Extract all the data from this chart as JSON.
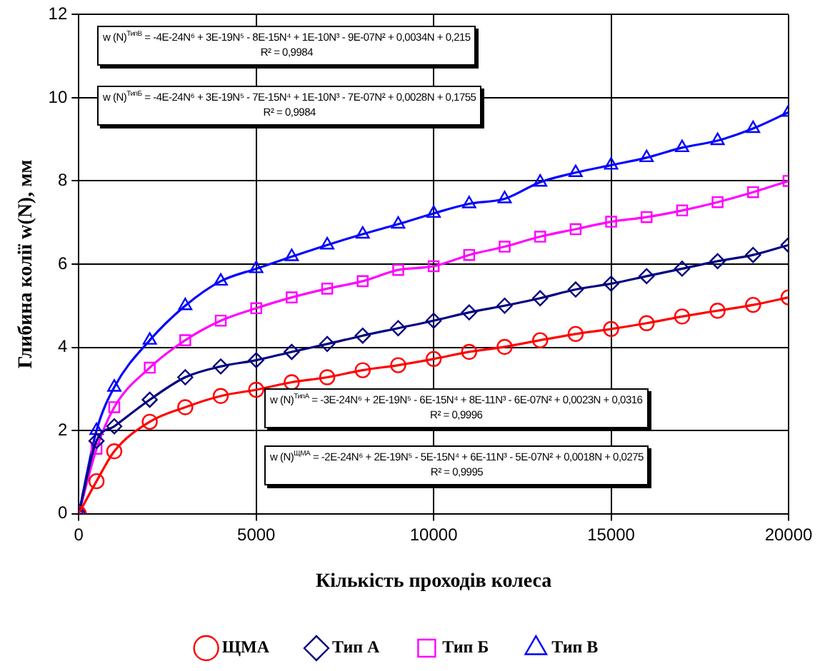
{
  "chart_data": {
    "type": "line",
    "xlabel": "Кількість проходів колеса",
    "ylabel": "Глибина колії w(N), мм",
    "x": [
      0,
      500,
      1000,
      2000,
      3000,
      4000,
      5000,
      6000,
      7000,
      8000,
      9000,
      10000,
      11000,
      12000,
      13000,
      14000,
      15000,
      16000,
      17000,
      18000,
      19000,
      20000
    ],
    "series": [
      {
        "name": "ЩМА",
        "color": "#ff0000",
        "marker": "circle",
        "values": [
          0,
          0.78,
          1.5,
          2.21,
          2.56,
          2.83,
          2.98,
          3.16,
          3.28,
          3.45,
          3.57,
          3.72,
          3.89,
          4.01,
          4.17,
          4.32,
          4.44,
          4.58,
          4.74,
          4.88,
          5.02,
          5.2
        ]
      },
      {
        "name": "Тип А",
        "color": "#000080",
        "marker": "diamond",
        "values": [
          0,
          1.75,
          2.1,
          2.74,
          3.28,
          3.54,
          3.69,
          3.89,
          4.08,
          4.28,
          4.46,
          4.64,
          4.84,
          5.0,
          5.18,
          5.39,
          5.53,
          5.71,
          5.89,
          6.07,
          6.22,
          6.46
        ]
      },
      {
        "name": "Тип Б",
        "color": "#ff00ff",
        "marker": "square",
        "values": [
          0,
          1.56,
          2.56,
          3.51,
          4.17,
          4.64,
          4.94,
          5.2,
          5.41,
          5.59,
          5.86,
          5.95,
          6.22,
          6.42,
          6.66,
          6.84,
          7.02,
          7.13,
          7.29,
          7.49,
          7.73,
          8.0
        ]
      },
      {
        "name": "Тип В",
        "color": "#0000ff",
        "marker": "triangle",
        "values": [
          0,
          2.0,
          3.04,
          4.17,
          5.0,
          5.59,
          5.89,
          6.18,
          6.46,
          6.72,
          6.96,
          7.22,
          7.45,
          7.57,
          7.97,
          8.2,
          8.38,
          8.56,
          8.8,
          8.97,
          9.26,
          9.65
        ]
      }
    ],
    "xlim": [
      0,
      20000
    ],
    "xticks": [
      0,
      5000,
      10000,
      15000,
      20000
    ],
    "ylim": [
      0,
      12
    ],
    "yticks": [
      0,
      2,
      4,
      6,
      8,
      10,
      12
    ],
    "grid": true,
    "legend": "bottom",
    "line_style": "solid",
    "annotations": [
      "w (N)$^{ТипВ}$ = -4E-24N⁶ + 3E-19N⁵ - 8E-15N⁴ + 1E-10N³ - 9E-07N² + 0,0034N + 0,215\nR² = 0,9984",
      "w (N)$^{ТипБ}$ = -4E-24N⁶ + 3E-19N⁵ - 7E-15N⁴ + 1E-10N³ - 7E-07N² + 0,0028N + 0,1755\nR² = 0,9984",
      "w (N)$^{ТипА}$ = -3E-24N⁶ + 2E-19N⁵ - 6E-15N⁴ + 8E-11N³ - 6E-07N² + 0,0023N + 0,0316\nR² = 0,9996",
      "w (N)$^{ЩМА}$ = -2E-24N⁶ + 2E-19N⁵ - 5E-15N⁴ + 6E-11N³ - 5E-07N² + 0,0018N + 0,0275\nR² = 0,9995"
    ]
  }
}
